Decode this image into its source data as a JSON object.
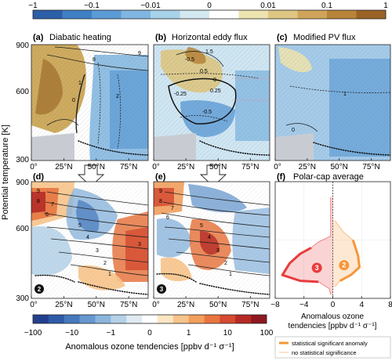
{
  "top_colorbar": {
    "ticks": [
      "−1",
      "−0.1",
      "−0.01",
      "0",
      "0.01",
      "0.1",
      "1"
    ],
    "colors": [
      "#2b5fa8",
      "#3f7fc4",
      "#5b9bd6",
      "#7fb5e0",
      "#a8d1ea",
      "#d3e8f1",
      "#ffffff",
      "#ede3b0",
      "#ddc782",
      "#cfa45a",
      "#b8843a",
      "#9a6225"
    ]
  },
  "bottom_colorbar": {
    "ticks": [
      "−100",
      "−10",
      "−1",
      "0",
      "1",
      "10",
      "100"
    ],
    "label": "Anomalous ozone tendencies [ppbv d⁻¹ σ⁻¹]",
    "colors": [
      "#23408f",
      "#2f5ba8",
      "#4579bd",
      "#6697ce",
      "#8bb5dd",
      "#b4d1e8",
      "#dfeaf1",
      "#ffffff",
      "#fde6c4",
      "#f8c48a",
      "#f29e5c",
      "#e8753f",
      "#d64a30",
      "#b52a25",
      "#8e1820"
    ]
  },
  "y_axis": {
    "label": "Potential temperature [K]",
    "ticks": [
      "900",
      "600",
      "300"
    ]
  },
  "x_ticks": [
    "0°",
    "25°N",
    "50°N",
    "75°N"
  ],
  "panels": [
    {
      "id": "a",
      "title": "Diabatic heating",
      "row": 0,
      "col": 0
    },
    {
      "id": "b",
      "title": "Horizontal eddy flux",
      "row": 0,
      "col": 1
    },
    {
      "id": "c",
      "title": "Modified PV flux",
      "row": 0,
      "col": 2
    },
    {
      "id": "d",
      "title": "",
      "row": 1,
      "col": 0,
      "badge": "2"
    },
    {
      "id": "e",
      "title": "",
      "row": 1,
      "col": 1,
      "badge": "3"
    }
  ],
  "panel_f": {
    "id": "f",
    "title": "Polar-cap average",
    "xlabel": "Anomalous ozone\ntendencies [ppbv d⁻¹ σ⁻¹]",
    "x_ticks": [
      "−8",
      "−4",
      "0",
      "4",
      "8"
    ],
    "xlim": [
      -8,
      8
    ],
    "ylim": [
      300,
      900
    ],
    "series": [
      {
        "name": "3",
        "color": "#e83c3c",
        "points": [
          [
            -0.3,
            820
          ],
          [
            -0.3,
            620
          ],
          [
            -2,
            590
          ],
          [
            -3,
            560
          ],
          [
            -4.5,
            530
          ],
          [
            -6,
            480
          ],
          [
            -7,
            420
          ],
          [
            -4.5,
            390
          ],
          [
            -2,
            385
          ],
          [
            -0.5,
            350
          ],
          [
            -0.3,
            320
          ]
        ]
      },
      {
        "name": "2",
        "color": "#f5973a",
        "points": [
          [
            0.3,
            700
          ],
          [
            1.5,
            640
          ],
          [
            2.8,
            600
          ],
          [
            3.5,
            520
          ],
          [
            3.7,
            460
          ],
          [
            2.5,
            420
          ],
          [
            1,
            390
          ],
          [
            0.3,
            360
          ]
        ]
      }
    ]
  },
  "legend": {
    "significant": "statistical significant anomaly",
    "not_significant": "no statistical significance"
  },
  "contour_labels_top": {
    "a": [
      "8",
      "9",
      "1",
      "0",
      "2"
    ],
    "b": [
      "1.5",
      "-0.5",
      "0.5",
      "0",
      "-0.25",
      "0.25",
      "-0.5"
    ],
    "c": [
      "1",
      "0"
    ]
  },
  "contour_labels_bottom": {
    "d": [
      "9",
      "8",
      "7",
      "6",
      "5",
      "4",
      "3",
      "2",
      "1",
      "3"
    ],
    "e": [
      "9",
      "8",
      "7",
      "6",
      "5",
      "4",
      "3",
      "2",
      "1"
    ]
  }
}
